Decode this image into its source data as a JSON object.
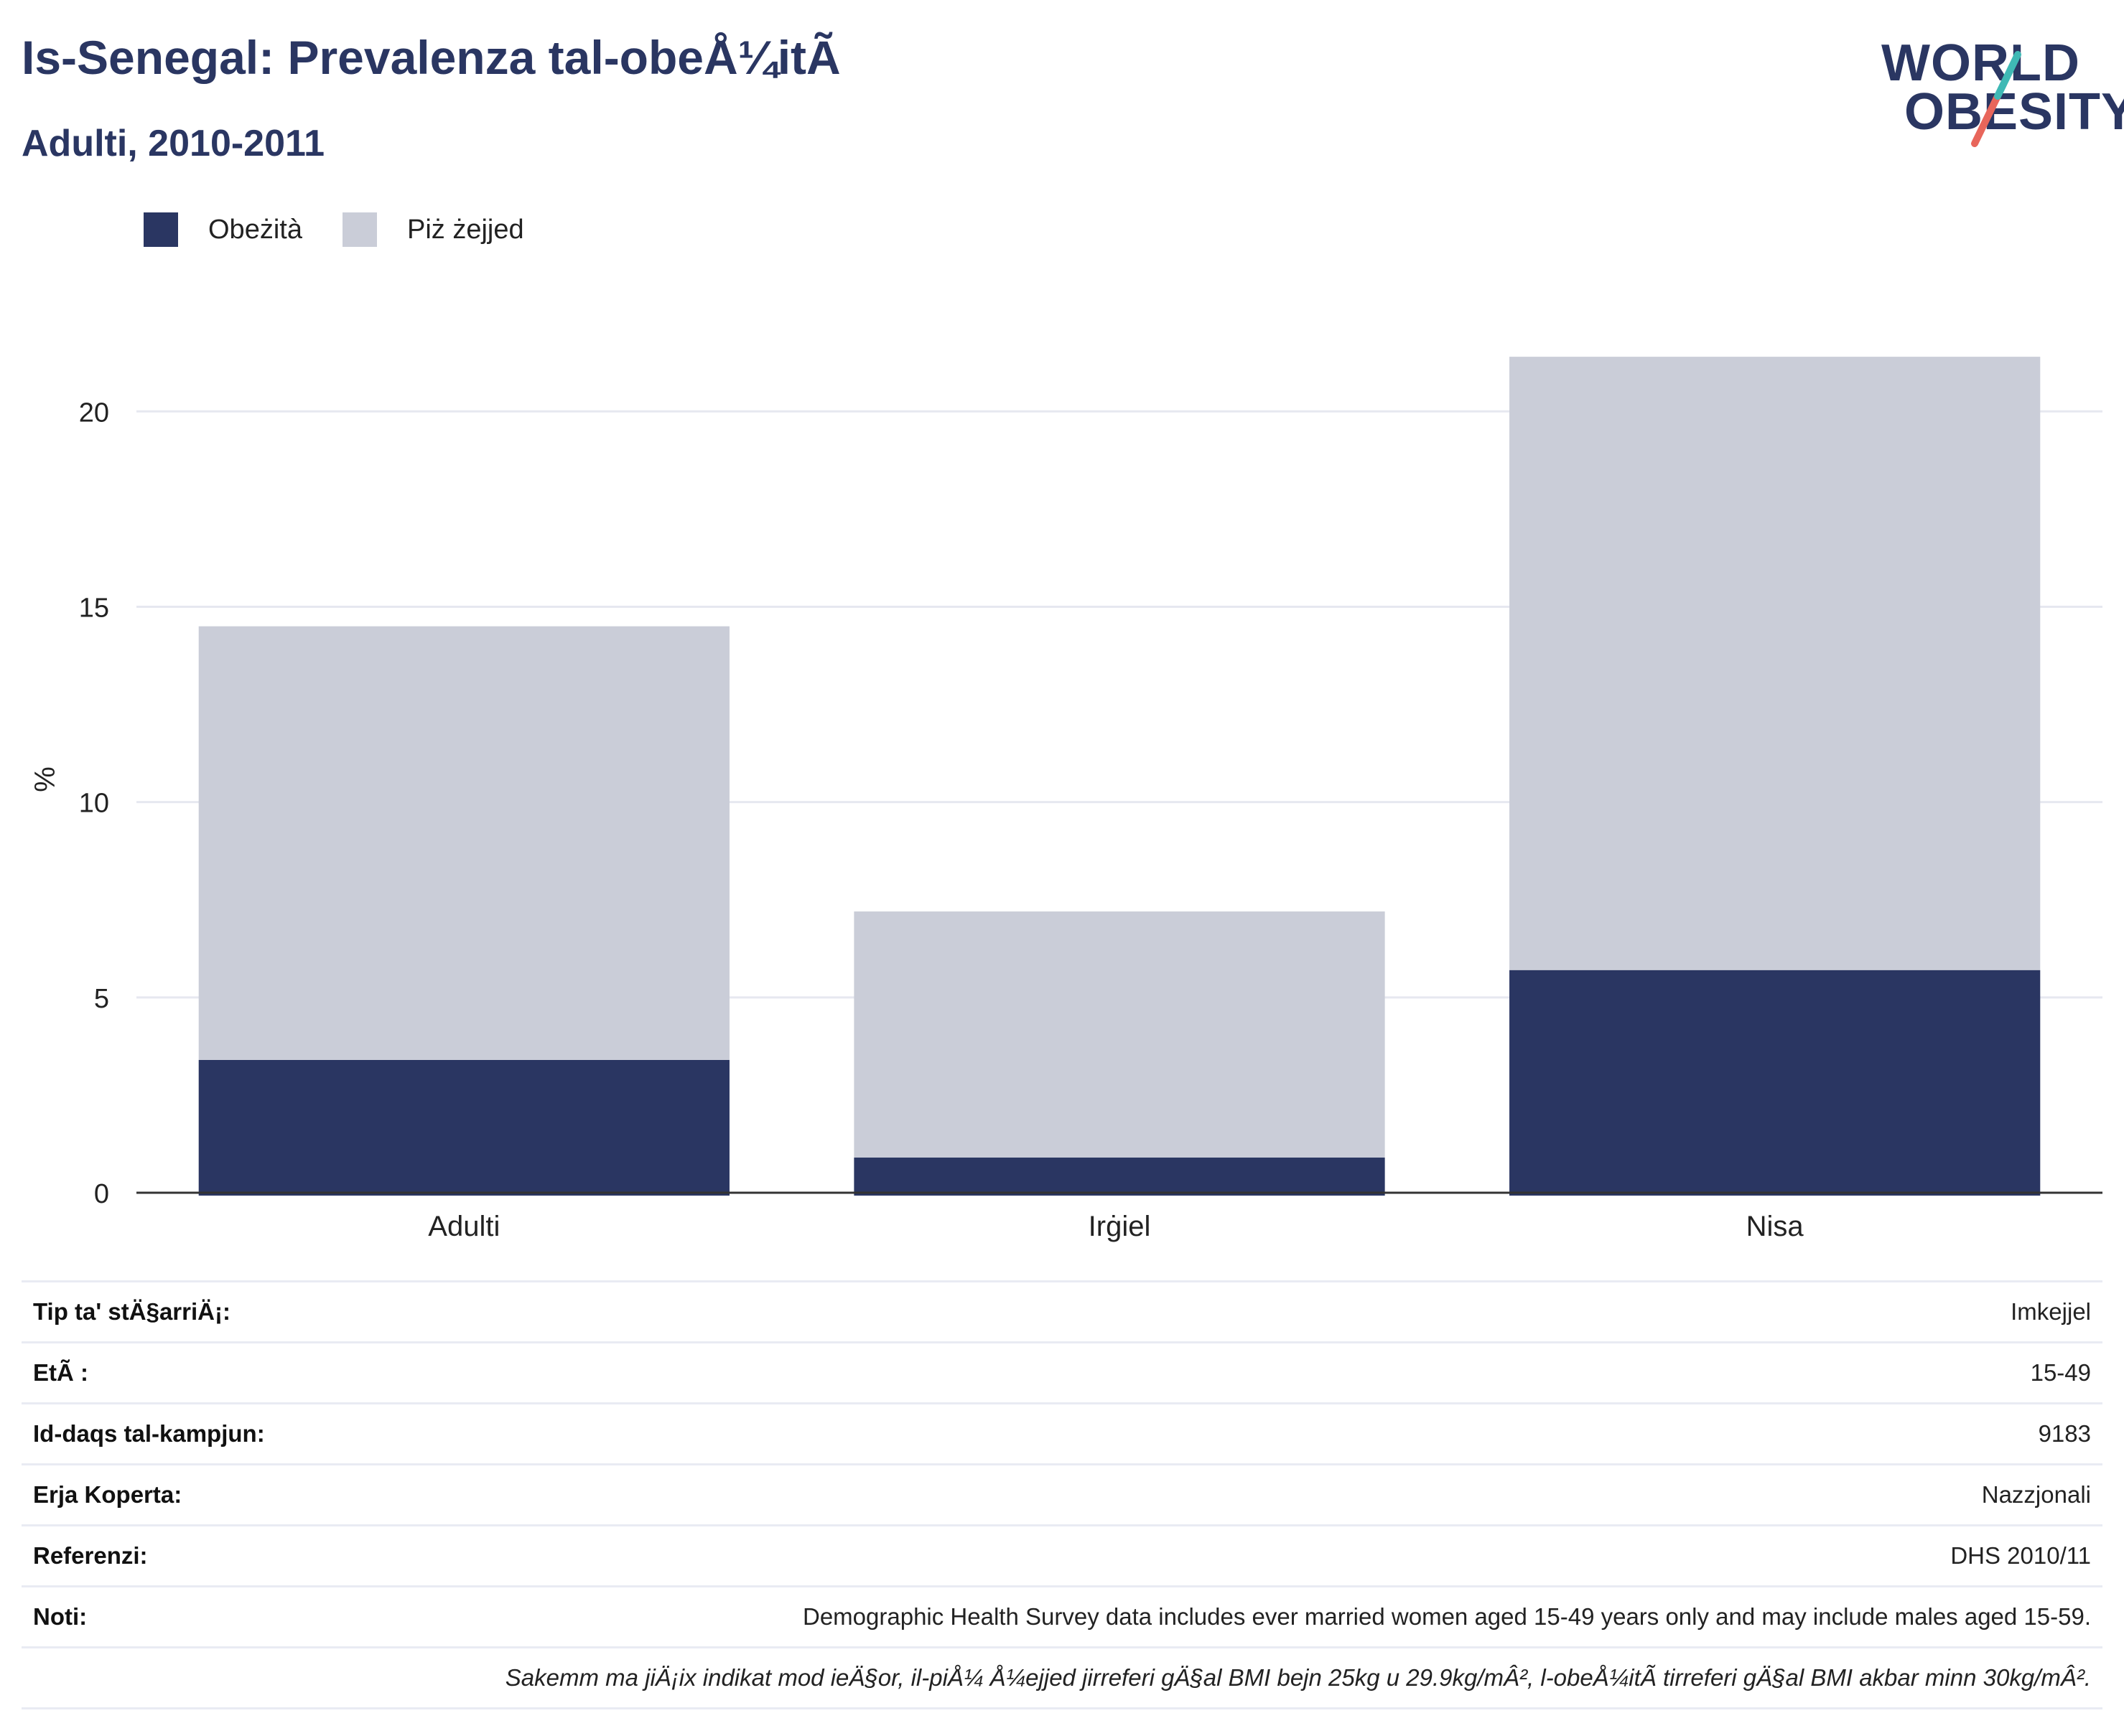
{
  "header": {
    "title": "Is-Senegal: Prevalenza tal-obeÅ¼itÃ",
    "subtitle": "Adulti, 2010-2011"
  },
  "logo": {
    "line1": "WORLD",
    "line2": "OBESITY"
  },
  "colors": {
    "obesity": "#2a3662",
    "overweight": "#cacdd8",
    "title": "#2a3662",
    "logo_teal": "#3fb9b5",
    "logo_red": "#e8665b"
  },
  "chart_data": {
    "type": "bar",
    "stacked": true,
    "categories": [
      "Adulti",
      "Irġiel",
      "Nisa"
    ],
    "series": [
      {
        "name": "Obeżità",
        "values": [
          3.4,
          0.9,
          5.7
        ]
      },
      {
        "name": "Piż żejjed",
        "values": [
          11.1,
          6.3,
          15.7
        ]
      }
    ],
    "ylabel": "%",
    "ylim": [
      0,
      23
    ],
    "yticks": [
      0,
      5,
      10,
      15,
      20
    ],
    "grid": true,
    "legend": "top-left"
  },
  "info": [
    {
      "label": "Tip ta' stÄ§arriÄ¡:",
      "value": "Imkejjel"
    },
    {
      "label": "EtÃ :",
      "value": "15-49"
    },
    {
      "label": "Id-daqs tal-kampjun:",
      "value": "9183"
    },
    {
      "label": "Erja Koperta:",
      "value": "Nazzjonali"
    },
    {
      "label": "Referenzi:",
      "value": "DHS 2010/11"
    },
    {
      "label": "Noti:",
      "value": "Demographic Health Survey data includes ever married women aged 15-49 years only and may include males aged 15-59."
    }
  ],
  "footnote": "Sakemm ma jiÄ¡ix indikat mod ieÄ§or, il-piÅ¼ Å¼ejjed jirreferi gÄ§al BMI bejn 25kg u 29.9kg/mÂ², l-obeÅ¼itÃ  tirreferi gÄ§al BMI akbar minn 30kg/mÂ²."
}
